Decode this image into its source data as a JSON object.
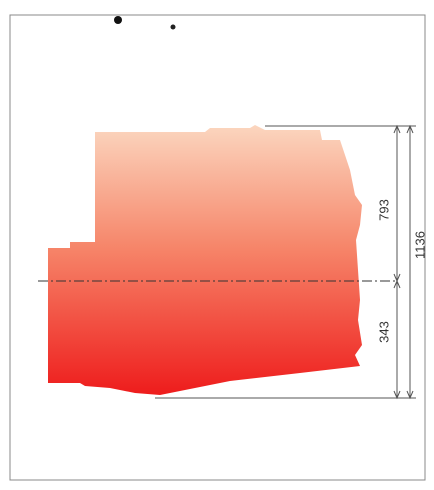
{
  "dimensions": {
    "upper": 793,
    "total": 1136,
    "lower": 343
  }
}
